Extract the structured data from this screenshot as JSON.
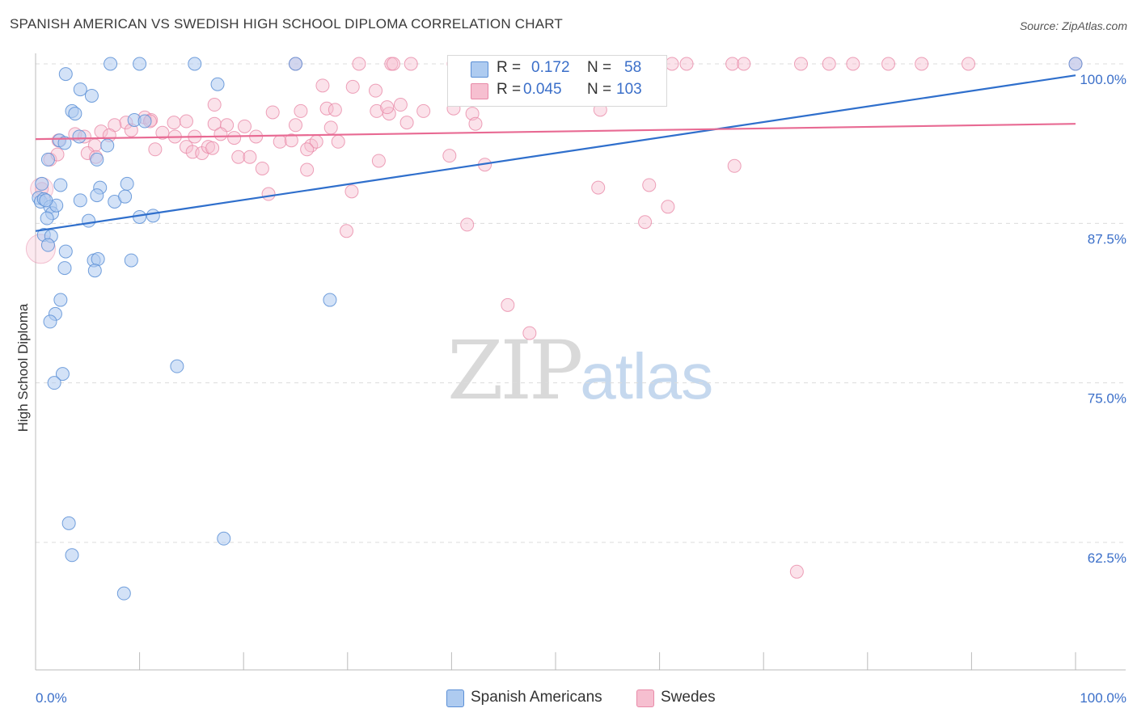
{
  "title": "SPANISH AMERICAN VS SWEDISH HIGH SCHOOL DIPLOMA CORRELATION CHART",
  "source": "Source: ZipAtlas.com",
  "watermark": {
    "zip": "ZIP",
    "atlas": "atlas"
  },
  "legend_top": [
    {
      "r_label": "R =",
      "r_value": "0.172",
      "n_label": "N =",
      "n_value": "58"
    },
    {
      "r_label": "R =",
      "r_value": "0.045",
      "n_label": "N =",
      "n_value": "103"
    }
  ],
  "legend_bottom": [
    "Spanish Americans",
    "Swedes"
  ],
  "colors": {
    "blue_fill": "#aecbf0",
    "blue_stroke": "#5b8fd6",
    "blue_line": "#2f6fcc",
    "pink_fill": "#f6bfd0",
    "pink_stroke": "#e88aa8",
    "pink_line": "#e86a93",
    "tick_label": "#3b6fc9",
    "grid": "#dcdcdc"
  },
  "chart_data": {
    "type": "scatter",
    "ylabel": "High School Diploma",
    "xlabel": "",
    "x_tick_labels": [
      "0.0%",
      "100.0%"
    ],
    "y_tick_labels": [
      "100.0%",
      "87.5%",
      "75.0%",
      "62.5%"
    ],
    "y_ticks": [
      100.0,
      87.5,
      75.0,
      62.5
    ],
    "xlim": [
      0,
      100
    ],
    "ylim": [
      52.5,
      100.8
    ],
    "series": [
      {
        "name": "Spanish Americans",
        "R": 0.172,
        "N": 58,
        "trend": {
          "x": [
            0,
            100
          ],
          "y": [
            86.9,
            99.1
          ]
        },
        "points": [
          [
            7.2,
            100
          ],
          [
            10.0,
            100
          ],
          [
            15.3,
            100
          ],
          [
            25.0,
            100
          ],
          [
            100,
            100
          ],
          [
            2.9,
            99.2
          ],
          [
            4.3,
            98.0
          ],
          [
            5.4,
            97.5
          ],
          [
            17.5,
            98.4
          ],
          [
            3.5,
            96.3
          ],
          [
            3.8,
            96.1
          ],
          [
            9.5,
            95.6
          ],
          [
            10.5,
            95.5
          ],
          [
            2.3,
            94.0
          ],
          [
            2.8,
            93.8
          ],
          [
            4.2,
            94.3
          ],
          [
            6.9,
            93.6
          ],
          [
            5.9,
            92.5
          ],
          [
            1.2,
            92.5
          ],
          [
            0.6,
            90.6
          ],
          [
            2.4,
            90.5
          ],
          [
            6.2,
            90.3
          ],
          [
            8.8,
            90.6
          ],
          [
            0.3,
            89.5
          ],
          [
            0.5,
            89.2
          ],
          [
            0.8,
            89.4
          ],
          [
            1.4,
            88.8
          ],
          [
            1.6,
            88.3
          ],
          [
            2.0,
            88.9
          ],
          [
            4.3,
            89.3
          ],
          [
            5.9,
            89.7
          ],
          [
            7.6,
            89.2
          ],
          [
            8.6,
            89.6
          ],
          [
            10.0,
            88.0
          ],
          [
            11.3,
            88.1
          ],
          [
            1.1,
            87.9
          ],
          [
            5.1,
            87.7
          ],
          [
            0.8,
            86.6
          ],
          [
            1.5,
            86.5
          ],
          [
            1.2,
            85.8
          ],
          [
            2.9,
            85.3
          ],
          [
            5.6,
            84.6
          ],
          [
            6.0,
            84.7
          ],
          [
            9.2,
            84.6
          ],
          [
            2.8,
            84.0
          ],
          [
            5.7,
            83.8
          ],
          [
            2.4,
            81.5
          ],
          [
            28.3,
            81.5
          ],
          [
            1.9,
            80.4
          ],
          [
            1.4,
            79.8
          ],
          [
            13.6,
            76.3
          ],
          [
            2.6,
            75.7
          ],
          [
            1.8,
            75.0
          ],
          [
            3.2,
            64.0
          ],
          [
            18.1,
            62.8
          ],
          [
            3.5,
            61.5
          ],
          [
            8.5,
            58.5
          ],
          [
            1.0,
            89.3
          ]
        ]
      },
      {
        "name": "Swedes",
        "R": 0.045,
        "N": 103,
        "trend": {
          "x": [
            0,
            100
          ],
          "y": [
            94.1,
            95.3
          ]
        },
        "points": [
          [
            25.0,
            100
          ],
          [
            31.1,
            100
          ],
          [
            34.2,
            100
          ],
          [
            34.4,
            100
          ],
          [
            36.1,
            100
          ],
          [
            40.2,
            100
          ],
          [
            41.6,
            100
          ],
          [
            46.0,
            100
          ],
          [
            47.4,
            100
          ],
          [
            49.8,
            100
          ],
          [
            50.6,
            100
          ],
          [
            55.1,
            100
          ],
          [
            58.8,
            100
          ],
          [
            61.2,
            100
          ],
          [
            62.6,
            100
          ],
          [
            67.0,
            100
          ],
          [
            68.1,
            100
          ],
          [
            73.6,
            100
          ],
          [
            76.3,
            100
          ],
          [
            78.6,
            100
          ],
          [
            82.0,
            100
          ],
          [
            85.2,
            100
          ],
          [
            89.7,
            100
          ],
          [
            100,
            100
          ],
          [
            27.6,
            98.3
          ],
          [
            30.5,
            98.2
          ],
          [
            32.7,
            97.9
          ],
          [
            37.3,
            96.3
          ],
          [
            35.1,
            96.8
          ],
          [
            28.0,
            96.5
          ],
          [
            28.8,
            96.4
          ],
          [
            32.8,
            96.3
          ],
          [
            34.0,
            96.1
          ],
          [
            25.5,
            96.3
          ],
          [
            22.8,
            96.2
          ],
          [
            17.2,
            96.8
          ],
          [
            33.8,
            96.6
          ],
          [
            40.2,
            96.5
          ],
          [
            42.0,
            96.1
          ],
          [
            54.3,
            96.4
          ],
          [
            10.5,
            95.8
          ],
          [
            11.1,
            95.6
          ],
          [
            13.3,
            95.4
          ],
          [
            14.5,
            95.5
          ],
          [
            8.7,
            95.4
          ],
          [
            7.6,
            95.2
          ],
          [
            17.2,
            95.3
          ],
          [
            18.4,
            95.2
          ],
          [
            20.1,
            95.1
          ],
          [
            25.0,
            95.2
          ],
          [
            28.4,
            95.0
          ],
          [
            35.7,
            95.4
          ],
          [
            42.3,
            95.3
          ],
          [
            6.3,
            94.7
          ],
          [
            9.2,
            94.8
          ],
          [
            11.0,
            95.5
          ],
          [
            12.2,
            94.6
          ],
          [
            13.4,
            94.3
          ],
          [
            15.3,
            94.3
          ],
          [
            17.8,
            94.5
          ],
          [
            19.1,
            94.2
          ],
          [
            21.2,
            94.3
          ],
          [
            23.5,
            93.9
          ],
          [
            24.6,
            94.0
          ],
          [
            26.5,
            93.6
          ],
          [
            27.0,
            93.9
          ],
          [
            29.1,
            93.9
          ],
          [
            2.2,
            94.0
          ],
          [
            3.8,
            94.5
          ],
          [
            4.7,
            94.3
          ],
          [
            7.1,
            94.4
          ],
          [
            5.7,
            93.6
          ],
          [
            11.5,
            93.3
          ],
          [
            14.5,
            93.5
          ],
          [
            15.1,
            93.1
          ],
          [
            16.0,
            93.0
          ],
          [
            16.6,
            93.5
          ],
          [
            17.0,
            93.4
          ],
          [
            19.5,
            92.7
          ],
          [
            20.6,
            92.7
          ],
          [
            26.1,
            93.3
          ],
          [
            33.0,
            92.4
          ],
          [
            39.8,
            92.8
          ],
          [
            43.2,
            92.1
          ],
          [
            1.4,
            92.5
          ],
          [
            2.1,
            92.9
          ],
          [
            5.0,
            93.0
          ],
          [
            5.8,
            92.7
          ],
          [
            21.8,
            91.8
          ],
          [
            26.1,
            91.7
          ],
          [
            30.4,
            90.0
          ],
          [
            22.4,
            89.8
          ],
          [
            54.1,
            90.3
          ],
          [
            59.0,
            90.5
          ],
          [
            67.2,
            92.0
          ],
          [
            58.6,
            87.6
          ],
          [
            41.5,
            87.4
          ],
          [
            29.9,
            86.9
          ],
          [
            60.8,
            88.8
          ],
          [
            45.4,
            81.1
          ],
          [
            47.5,
            78.9
          ],
          [
            73.2,
            60.2
          ],
          [
            0.6,
            90.2
          ]
        ]
      }
    ]
  }
}
